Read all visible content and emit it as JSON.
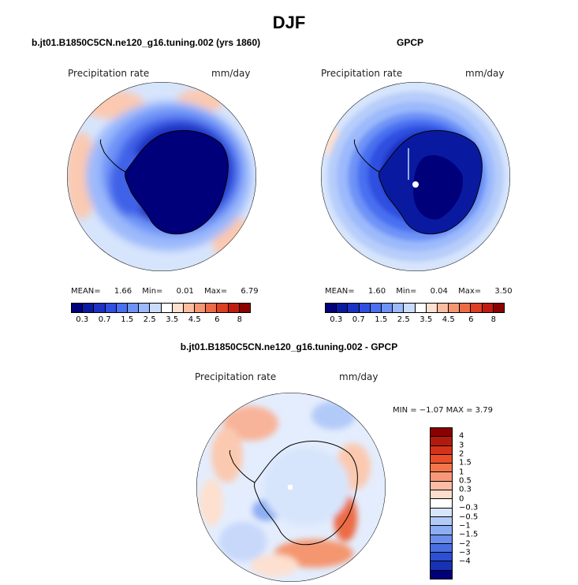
{
  "title": "DJF",
  "panels": [
    {
      "title": "b.jt01.B1850C5CN.ne120_g16.tuning.002 (yrs 1860)",
      "field": "Precipitation rate",
      "units": "mm/day",
      "mean_label": "MEAN=",
      "mean": "1.66",
      "min_label": "Min=",
      "min": "0.01",
      "max_label": "Max=",
      "max": "6.79"
    },
    {
      "title": "GPCP",
      "field": "Precipitation rate",
      "units": "mm/day",
      "mean_label": "MEAN=",
      "mean": "1.60",
      "min_label": "Min=",
      "min": "0.04",
      "max_label": "Max=",
      "max": "3.50"
    },
    {
      "title": "b.jt01.B1850C5CN.ne120_g16.tuning.002 - GPCP",
      "field": "Precipitation rate",
      "units": "mm/day",
      "stats": "MIN =   −1.07 MAX =    3.79"
    }
  ],
  "colorbar_abs": {
    "colors": [
      "#00007a",
      "#0a1aa0",
      "#1b32c4",
      "#2f4fe0",
      "#4a6ff0",
      "#6e93f7",
      "#9cb9fb",
      "#cadcfd",
      "#ffffff",
      "#fde0cf",
      "#f9bd9f",
      "#f49670",
      "#ec6b45",
      "#dc3f22",
      "#c01b10",
      "#8b0000"
    ],
    "labels": [
      "0.3",
      "0.7",
      "1.5",
      "2.5",
      "3.5",
      "4.5",
      "6",
      "8"
    ]
  },
  "colorbar_diff": {
    "colors": [
      "#8b0000",
      "#b31a0e",
      "#d5321a",
      "#ec4e2a",
      "#f5754b",
      "#f8987a",
      "#fbbca4",
      "#fdddcd",
      "#ffffff",
      "#d7e5fc",
      "#b2caf8",
      "#8eaef3",
      "#6a8fed",
      "#4a6fe3",
      "#2c4fd3",
      "#1732b5",
      "#00007a"
    ],
    "labels": [
      "4",
      "3",
      "2",
      "1.5",
      "1",
      "0.5",
      "0.3",
      "0",
      "−0.3",
      "−0.5",
      "−1",
      "−1.5",
      "−2",
      "−3",
      "−4"
    ]
  }
}
